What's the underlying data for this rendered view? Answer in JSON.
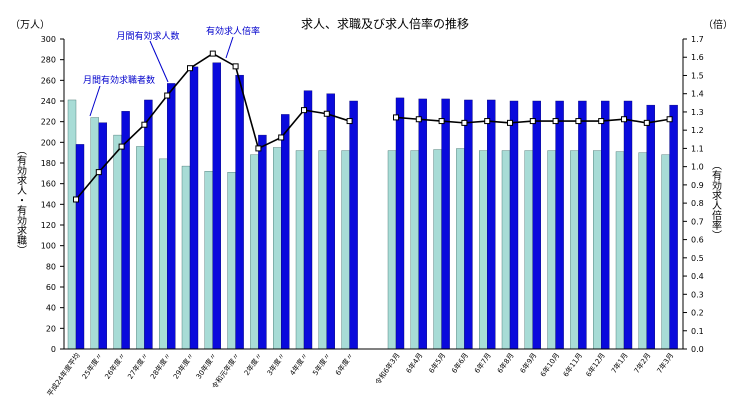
{
  "chart_data": {
    "type": "bar",
    "title": "求人、求職及び求人倍率の推移",
    "left_unit": "（万人）",
    "right_unit": "（倍）",
    "ylabel_left": "（有効求人・有効求職）",
    "ylabel_right": "（有効求人倍率）",
    "y_left": {
      "min": 0,
      "max": 300,
      "step": 20
    },
    "y_right": {
      "min": 0,
      "max": 1.7,
      "step": 0.1
    },
    "grid": false,
    "categories": [
      "平成24年度平均",
      "25年度〃",
      "26年度〃",
      "27年度〃",
      "28年度〃",
      "29年度〃",
      "30年度〃",
      "令和元年度〃",
      "2年度〃",
      "3年度〃",
      "4年度〃",
      "5年度〃",
      "6年度〃",
      "令和6年3月",
      "6年4月",
      "6年5月",
      "6年6月",
      "6年7月",
      "6年8月",
      "6年9月",
      "6年10月",
      "6年11月",
      "6年12月",
      "7年1月",
      "7年2月",
      "7年3月"
    ],
    "series": [
      {
        "name": "月間有効求職者数",
        "axis": "left",
        "color": "#a8dcd6",
        "values": [
          241,
          224,
          207,
          196,
          184,
          177,
          172,
          171,
          188,
          195,
          192,
          192,
          192,
          192,
          192,
          193,
          194,
          192,
          192,
          192,
          192,
          192,
          192,
          191,
          190,
          188
        ]
      },
      {
        "name": "月間有効求人数",
        "axis": "left",
        "color": "#0a0adc",
        "values": [
          198,
          219,
          230,
          241,
          257,
          273,
          277,
          265,
          207,
          227,
          250,
          247,
          240,
          243,
          242,
          242,
          241,
          241,
          240,
          240,
          240,
          240,
          240,
          240,
          236,
          236
        ]
      },
      {
        "name": "有効求人倍率",
        "axis": "right",
        "type": "line",
        "values": [
          0.82,
          0.97,
          1.11,
          1.23,
          1.39,
          1.54,
          1.62,
          1.55,
          1.1,
          1.16,
          1.31,
          1.29,
          1.25,
          1.27,
          1.26,
          1.25,
          1.24,
          1.25,
          1.24,
          1.25,
          1.25,
          1.25,
          1.25,
          1.26,
          1.24,
          1.26
        ]
      }
    ],
    "legend_labels": {
      "seekers": "月間有効求職者数",
      "openings": "月間有効求人数",
      "ratio": "有効求人倍率"
    }
  }
}
